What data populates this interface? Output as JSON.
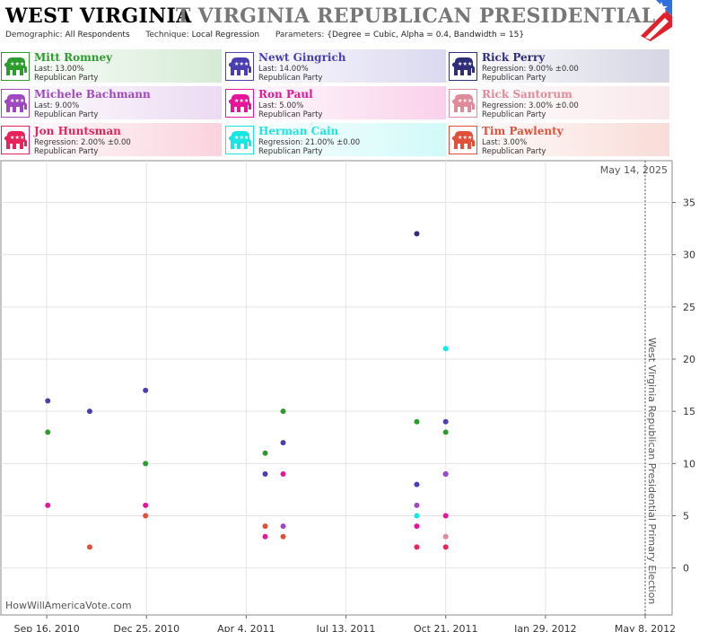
{
  "header": {
    "state": "WEST VIRGINIA",
    "race": "T VIRGINIA REPUBLICAN PRESIDENTIAL PRIMARY",
    "demographic_label": "Demographic:",
    "demographic_value": "All Respondents",
    "technique_label": "Technique:",
    "technique_value": "Local Regression",
    "parameters_label": "Parameters:",
    "parameters_value": "{Degree = Cubic, Alpha = 0.4, Bandwidth = 15}"
  },
  "colors": {
    "romney": "#2e9b2e",
    "gingrich": "#4a3fb0",
    "perry": "#2e2e7a",
    "bachmann": "#a048c0",
    "paul": "#e6159a",
    "santorum": "#e08a9a",
    "huntsman": "#e8235a",
    "cain": "#19e6e0",
    "pawlenty": "#e0503a"
  },
  "legend": [
    {
      "key": "romney",
      "name": "Mitt Romney",
      "stat": "Last: 13.00%",
      "party": "Republican Party"
    },
    {
      "key": "gingrich",
      "name": "Newt Gingrich",
      "stat": "Last: 14.00%",
      "party": "Republican Party"
    },
    {
      "key": "perry",
      "name": "Rick Perry",
      "stat": "Regression: 9.00% ±0.00",
      "party": "Republican Party"
    },
    {
      "key": "bachmann",
      "name": "Michele Bachmann",
      "stat": "Last: 9.00%",
      "party": "Republican Party"
    },
    {
      "key": "paul",
      "name": "Ron Paul",
      "stat": "Last: 5.00%",
      "party": "Republican Party"
    },
    {
      "key": "santorum",
      "name": "Rick Santorum",
      "stat": "Regression: 3.00% ±0.00",
      "party": "Republican Party"
    },
    {
      "key": "huntsman",
      "name": "Jon Huntsman",
      "stat": "Regression: 2.00% ±0.00",
      "party": "Republican Party"
    },
    {
      "key": "cain",
      "name": "Herman Cain",
      "stat": "Regression: 21.00% ±0.00",
      "party": "Republican Party"
    },
    {
      "key": "pawlenty",
      "name": "Tim Pawlenty",
      "stat": "Last: 3.00%",
      "party": "Republican Party"
    }
  ],
  "chart_data": {
    "type": "scatter",
    "date_stamp": "May 14, 2025",
    "event_label": "West Virginia Republican Presidential Primary Election",
    "event_date": "2012-05-08",
    "watermark": "HowWillAmericaVote.com",
    "x_range": [
      "2010-08-01",
      "2012-06-04"
    ],
    "x_ticks": [
      {
        "date": "2010-09-16",
        "label": "Sep 16, 2010"
      },
      {
        "date": "2010-12-25",
        "label": "Dec 25, 2010"
      },
      {
        "date": "2011-04-04",
        "label": "Apr 4, 2011"
      },
      {
        "date": "2011-07-13",
        "label": "Jul 13, 2011"
      },
      {
        "date": "2011-10-21",
        "label": "Oct 21, 2011"
      },
      {
        "date": "2012-01-29",
        "label": "Jan 29, 2012"
      },
      {
        "date": "2012-05-08",
        "label": "May 8, 2012"
      }
    ],
    "ylim": [
      -4.5,
      39
    ],
    "y_ticks": [
      0,
      5,
      10,
      15,
      20,
      25,
      30,
      35
    ],
    "grid": true,
    "series": [
      {
        "key": "romney",
        "name": "Mitt Romney",
        "points": [
          [
            "2010-09-17",
            13
          ],
          [
            "2010-12-24",
            10
          ],
          [
            "2011-04-23",
            11
          ],
          [
            "2011-05-11",
            15
          ],
          [
            "2011-09-22",
            14
          ],
          [
            "2011-10-21",
            13
          ]
        ]
      },
      {
        "key": "gingrich",
        "name": "Newt Gingrich",
        "points": [
          [
            "2010-09-17",
            16
          ],
          [
            "2010-10-29",
            15
          ],
          [
            "2010-12-24",
            17
          ],
          [
            "2011-04-23",
            9
          ],
          [
            "2011-05-11",
            12
          ],
          [
            "2011-09-22",
            8
          ],
          [
            "2011-10-21",
            14
          ]
        ]
      },
      {
        "key": "perry",
        "name": "Rick Perry",
        "points": [
          [
            "2011-09-22",
            32
          ],
          [
            "2011-10-21",
            9
          ]
        ]
      },
      {
        "key": "bachmann",
        "name": "Michele Bachmann",
        "points": [
          [
            "2011-05-11",
            4
          ],
          [
            "2011-09-22",
            6
          ],
          [
            "2011-10-21",
            9
          ]
        ]
      },
      {
        "key": "paul",
        "name": "Ron Paul",
        "points": [
          [
            "2010-09-17",
            6
          ],
          [
            "2010-12-24",
            6
          ],
          [
            "2011-04-23",
            3
          ],
          [
            "2011-05-11",
            9
          ],
          [
            "2011-09-22",
            4
          ],
          [
            "2011-10-21",
            5
          ]
        ]
      },
      {
        "key": "santorum",
        "name": "Rick Santorum",
        "points": [
          [
            "2011-10-21",
            3
          ]
        ]
      },
      {
        "key": "huntsman",
        "name": "Jon Huntsman",
        "points": [
          [
            "2011-09-22",
            2
          ],
          [
            "2011-10-21",
            2
          ]
        ]
      },
      {
        "key": "cain",
        "name": "Herman Cain",
        "points": [
          [
            "2011-09-22",
            5
          ],
          [
            "2011-10-21",
            21
          ]
        ]
      },
      {
        "key": "pawlenty",
        "name": "Tim Pawlenty",
        "points": [
          [
            "2010-10-29",
            2
          ],
          [
            "2010-12-24",
            5
          ],
          [
            "2011-04-23",
            4
          ],
          [
            "2011-05-11",
            3
          ]
        ]
      }
    ]
  }
}
